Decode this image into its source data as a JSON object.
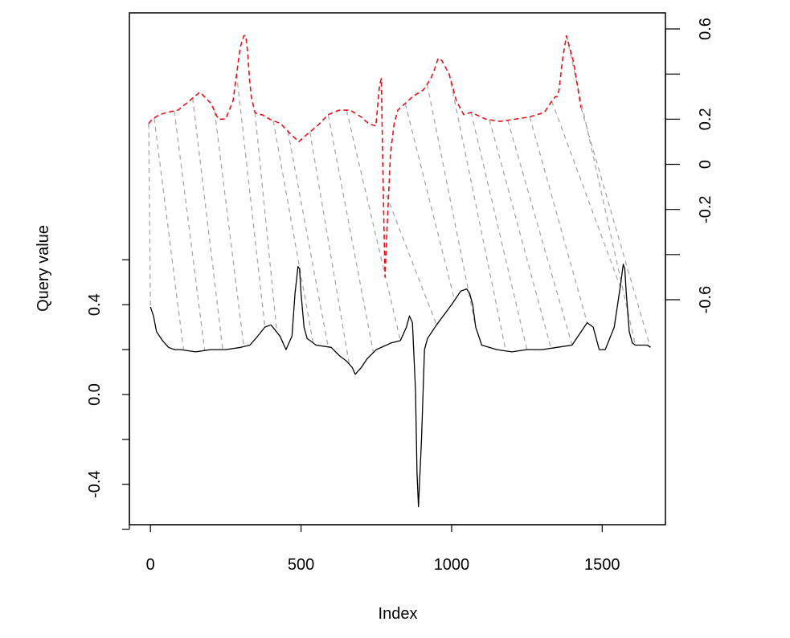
{
  "chart_data": {
    "type": "line",
    "title": "",
    "xlabel": "Index",
    "ylabel": "Query value",
    "xlim": [
      -70,
      1710
    ],
    "ylim": [
      -0.58,
      1.7
    ],
    "x_ticks": [
      0,
      500,
      1000,
      1500
    ],
    "x_tick_labels": [
      "0",
      "500",
      "1000",
      "1500"
    ],
    "left_axis": {
      "ticks": [
        -0.6,
        -0.4,
        -0.2,
        0.0,
        0.2,
        0.4,
        0.6
      ],
      "labels": [
        "",
        "-0.4",
        "",
        "0.0",
        "",
        "0.4",
        ""
      ]
    },
    "right_axis": {
      "ticks": [
        -0.6,
        -0.4,
        -0.2,
        0.0,
        0.2,
        0.4,
        0.6
      ],
      "labels": [
        "-0.6",
        "",
        "-0.2",
        "0",
        "0.2",
        "",
        "0.6"
      ]
    },
    "grid": false,
    "legend": "none",
    "series": [
      {
        "role": "query",
        "color": "#000000",
        "linestyle": "solid",
        "x": [
          0,
          10,
          20,
          40,
          60,
          80,
          100,
          150,
          200,
          250,
          300,
          330,
          350,
          380,
          400,
          430,
          450,
          470,
          480,
          490,
          495,
          500,
          510,
          520,
          550,
          600,
          630,
          650,
          670,
          680,
          700,
          720,
          750,
          800,
          830,
          850,
          860,
          870,
          880,
          885,
          890,
          900,
          910,
          920,
          950,
          1000,
          1030,
          1050,
          1060,
          1070,
          1080,
          1100,
          1150,
          1200,
          1250,
          1300,
          1350,
          1400,
          1430,
          1450,
          1470,
          1490,
          1510,
          1540,
          1560,
          1570,
          1575,
          1580,
          1590,
          1600,
          1610,
          1620,
          1650,
          1660
        ],
        "y": [
          0.39,
          0.35,
          0.28,
          0.24,
          0.21,
          0.2,
          0.2,
          0.19,
          0.2,
          0.2,
          0.21,
          0.22,
          0.25,
          0.3,
          0.31,
          0.26,
          0.2,
          0.26,
          0.45,
          0.57,
          0.56,
          0.45,
          0.3,
          0.25,
          0.22,
          0.21,
          0.17,
          0.15,
          0.12,
          0.09,
          0.12,
          0.16,
          0.2,
          0.23,
          0.24,
          0.3,
          0.35,
          0.32,
          0.02,
          -0.35,
          -0.5,
          -0.2,
          0.2,
          0.25,
          0.31,
          0.4,
          0.46,
          0.47,
          0.45,
          0.4,
          0.3,
          0.22,
          0.2,
          0.19,
          0.2,
          0.2,
          0.21,
          0.22,
          0.28,
          0.32,
          0.3,
          0.2,
          0.2,
          0.3,
          0.48,
          0.58,
          0.56,
          0.45,
          0.28,
          0.23,
          0.22,
          0.22,
          0.22,
          0.21
        ]
      },
      {
        "role": "reference",
        "color": "#e8101a",
        "linestyle": "dashed",
        "axis": "right",
        "x": [
          0,
          10,
          30,
          50,
          80,
          110,
          140,
          170,
          190,
          210,
          230,
          250,
          260,
          265,
          270,
          275,
          280,
          290,
          300,
          310,
          330,
          360,
          390,
          410,
          430,
          460,
          490,
          520,
          550,
          580,
          600,
          620,
          630,
          635,
          640,
          645,
          650,
          660,
          670,
          680,
          700,
          720,
          750,
          770,
          780,
          790,
          800,
          820,
          840,
          860,
          880,
          920,
          960,
          1000,
          1040,
          1080,
          1100,
          1110,
          1115,
          1120,
          1130,
          1140,
          1160,
          1180
        ],
        "y": [
          0.18,
          0.2,
          0.22,
          0.23,
          0.24,
          0.28,
          0.32,
          0.27,
          0.2,
          0.2,
          0.28,
          0.52,
          0.57,
          0.57,
          0.5,
          0.38,
          0.3,
          0.23,
          0.22,
          0.22,
          0.2,
          0.18,
          0.13,
          0.1,
          0.13,
          0.17,
          0.22,
          0.24,
          0.24,
          0.21,
          0.18,
          0.17,
          0.35,
          0.38,
          -0.1,
          -0.5,
          -0.3,
          0.05,
          0.18,
          0.24,
          0.27,
          0.3,
          0.33,
          0.38,
          0.42,
          0.47,
          0.46,
          0.4,
          0.28,
          0.22,
          0.23,
          0.2,
          0.19,
          0.2,
          0.21,
          0.23,
          0.28,
          0.3,
          0.3,
          0.33,
          0.47,
          0.57,
          0.45,
          0.25
        ]
      }
    ],
    "alignment_pairs": [
      [
        0,
        0
      ],
      [
        110,
        15
      ],
      [
        180,
        70
      ],
      [
        240,
        120
      ],
      [
        310,
        180
      ],
      [
        380,
        240
      ],
      [
        420,
        290
      ],
      [
        540,
        340
      ],
      [
        590,
        380
      ],
      [
        660,
        440
      ],
      [
        740,
        490
      ],
      [
        830,
        540
      ],
      [
        950,
        640
      ],
      [
        1010,
        700
      ],
      [
        1080,
        760
      ],
      [
        1180,
        820
      ],
      [
        1250,
        880
      ],
      [
        1330,
        930
      ],
      [
        1400,
        980
      ],
      [
        1450,
        1040
      ],
      [
        1560,
        1100
      ],
      [
        1610,
        1140
      ],
      [
        1660,
        1180
      ]
    ]
  }
}
